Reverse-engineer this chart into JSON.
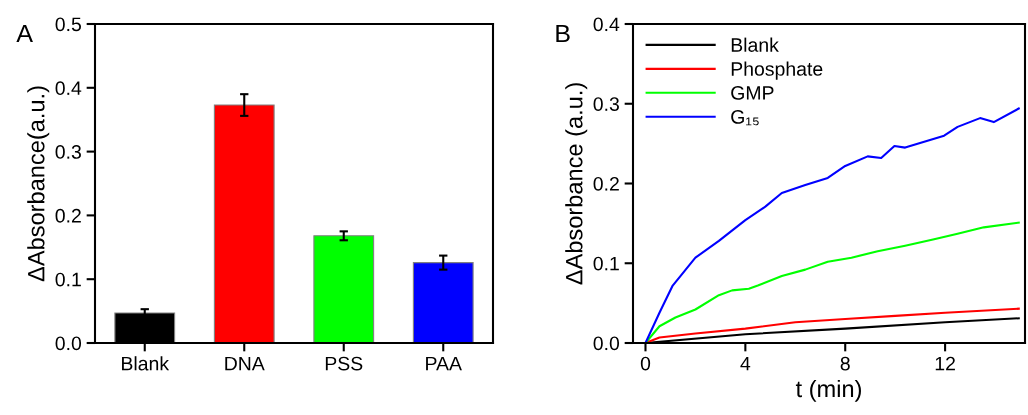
{
  "chart_data": [
    {
      "type": "bar",
      "categories": [
        "Blank",
        "DNA",
        "PSS",
        "PAA"
      ],
      "values": [
        0.047,
        0.373,
        0.168,
        0.126
      ],
      "colors": [
        "#000000",
        "#ff0000",
        "#00ff00",
        "#0000ff"
      ],
      "errors": [
        0.006,
        0.017,
        0.007,
        0.011
      ],
      "ylabel": "ΔAbsorbance(a.u.)",
      "ylim": [
        0,
        0.5
      ],
      "yticks": [
        {
          "value": 0,
          "label": "0.0"
        },
        0.1,
        0.2,
        0.3,
        0.4,
        0.5
      ],
      "annotations": [
        "A"
      ],
      "grid": false
    },
    {
      "type": "line",
      "xlabel": "t (min)",
      "ylabel": "ΔAbsorbance (a.u.)",
      "xlim": [
        -0.5,
        15.2
      ],
      "xticks": [
        0,
        4,
        8,
        12
      ],
      "ylim": [
        0,
        0.4
      ],
      "yticks": [
        {
          "value": 0,
          "label": "0.0"
        },
        0.1,
        0.2,
        0.3,
        0.4
      ],
      "annotations": [
        "B"
      ],
      "grid": false,
      "legend": "top left",
      "marker": "none",
      "line_style": "solid",
      "series": [
        {
          "name": "Blank",
          "color": "#000000",
          "x": [
            0,
            4,
            8,
            12,
            14.95
          ],
          "values": [
            0,
            0.011,
            0.018,
            0.026,
            0.031
          ]
        },
        {
          "name": "Phosphate",
          "color": "#ff0000",
          "x": [
            0,
            0.56,
            2.0,
            4,
            6,
            8,
            10,
            12,
            14.95
          ],
          "values": [
            0,
            0.007,
            0.012,
            0.018,
            0.026,
            0.03,
            0.034,
            0.038,
            0.043
          ]
        },
        {
          "name": "GMP",
          "color": "#00ff00",
          "x": [
            0,
            0.56,
            1.2,
            2.0,
            2.94,
            3.47,
            4.14,
            4.5,
            5.46,
            6.4,
            7.3,
            8.25,
            9.3,
            10.4,
            11.56,
            12.5,
            13.55,
            14.95
          ],
          "values": [
            0,
            0.021,
            0.032,
            0.042,
            0.06,
            0.066,
            0.068,
            0.072,
            0.084,
            0.092,
            0.102,
            0.107,
            0.115,
            0.122,
            0.13,
            0.137,
            0.145,
            0.151
          ]
        },
        {
          "name": "G₁₅",
          "color": "#0000ff",
          "x": [
            0,
            0.56,
            1.09,
            2.0,
            2.94,
            4,
            4.8,
            5.46,
            6.4,
            7.3,
            8,
            8.9,
            9.44,
            9.97,
            10.4,
            11.96,
            12.5,
            13.4,
            13.95,
            14.95
          ],
          "values": [
            0,
            0.038,
            0.072,
            0.107,
            0.128,
            0.154,
            0.171,
            0.188,
            0.198,
            0.207,
            0.222,
            0.234,
            0.232,
            0.247,
            0.245,
            0.26,
            0.271,
            0.282,
            0.277,
            0.294
          ]
        }
      ]
    }
  ]
}
